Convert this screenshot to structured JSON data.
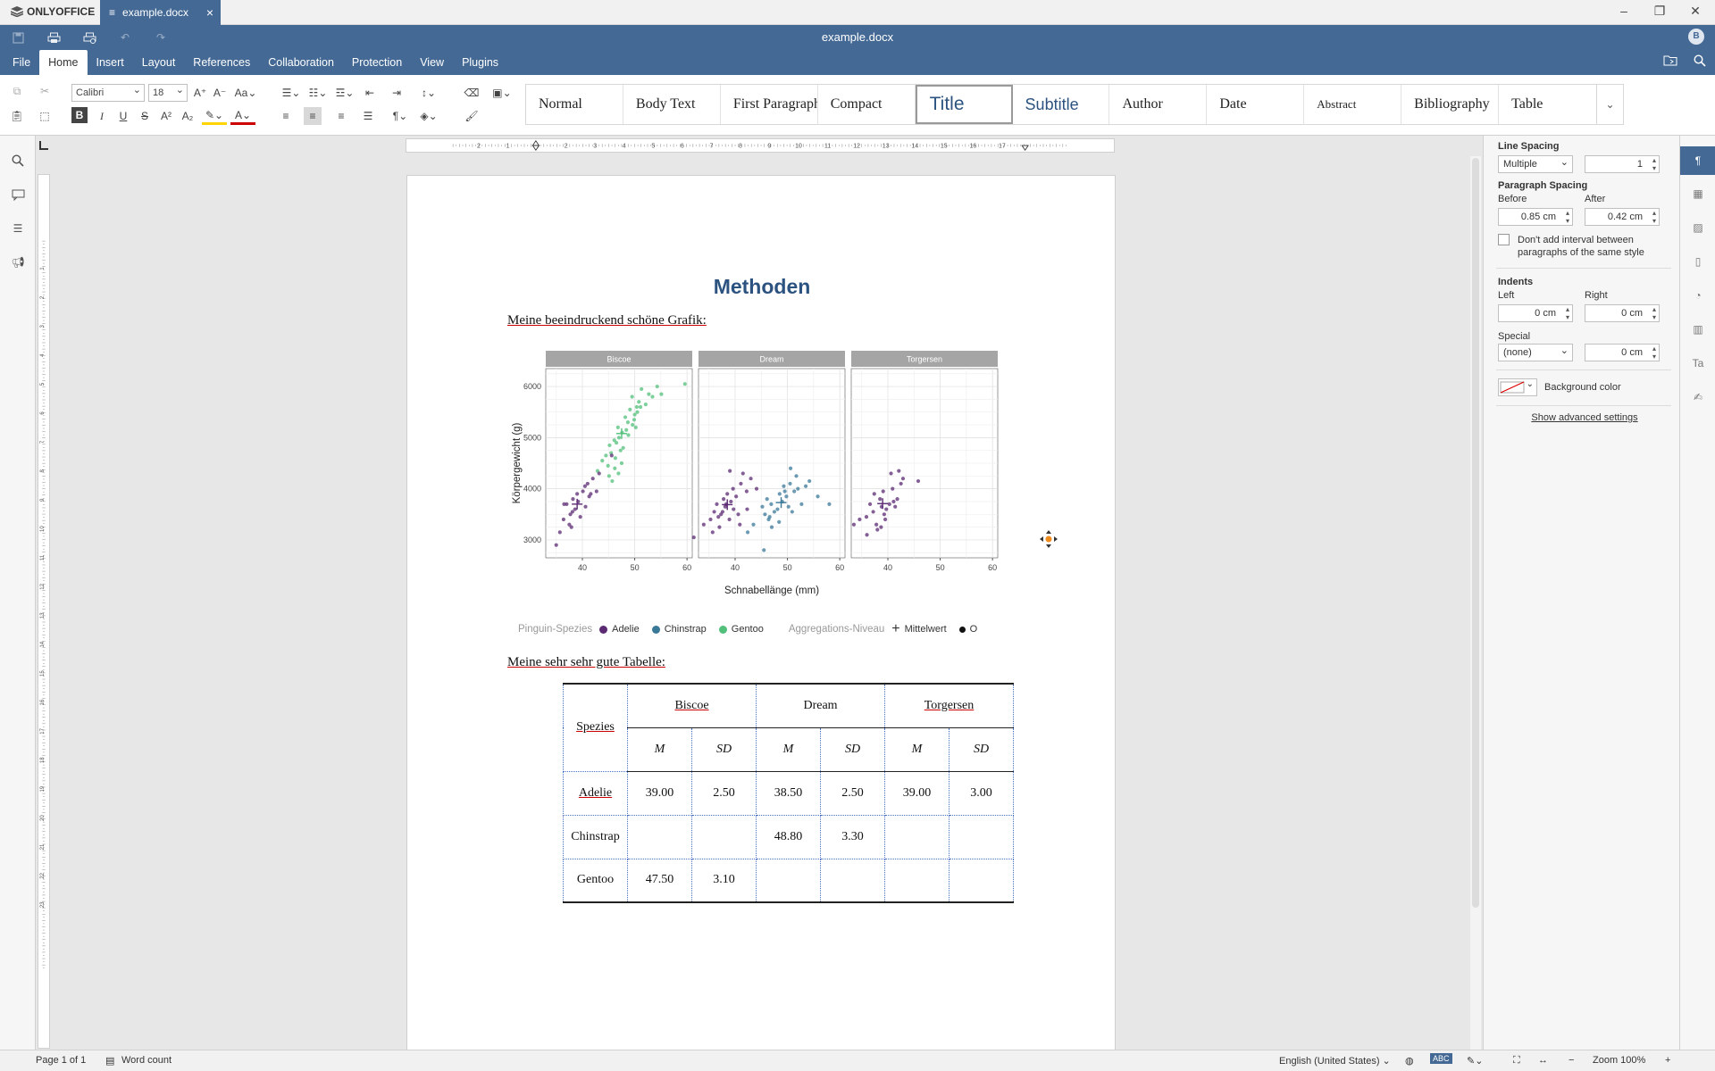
{
  "app": {
    "brand": "ONLYOFFICE",
    "tab_title": "example.docx",
    "doc_title": "example.docx",
    "user_initial": "B"
  },
  "menu": [
    "File",
    "Home",
    "Insert",
    "Layout",
    "References",
    "Collaboration",
    "Protection",
    "View",
    "Plugins"
  ],
  "toolbar": {
    "font_name": "Calibri",
    "font_size": "18",
    "change_case": "Aa",
    "styles": [
      "Normal",
      "Body Text",
      "First Paragraph",
      "Compact",
      "Title",
      "Subtitle",
      "Author",
      "Date",
      "Abstract",
      "Bibliography",
      "Table"
    ]
  },
  "document": {
    "heading": "Methoden",
    "chart_caption": "Meine beeindruckend schöne Grafik:",
    "table_caption": "Meine sehr sehr gute Tabelle:"
  },
  "chart_data": {
    "type": "scatter",
    "facets": [
      "Biscoe",
      "Dream",
      "Torgersen"
    ],
    "xlabel": "Schnabellänge (mm)",
    "ylabel": "Körpergewicht (g)",
    "x_ticks": [
      40,
      50,
      60
    ],
    "y_ticks": [
      3000,
      4000,
      5000,
      6000
    ],
    "xlim": [
      33,
      61
    ],
    "ylim": [
      2650,
      6350
    ],
    "legend": {
      "species_title": "Pinguin-Spezies",
      "species": [
        {
          "name": "Adelie",
          "color": "#5b2a73"
        },
        {
          "name": "Chinstrap",
          "color": "#3a7898"
        },
        {
          "name": "Gentoo",
          "color": "#52c07a"
        }
      ],
      "aggregation_title": "Aggregations-Niveau",
      "aggregation": [
        {
          "name": "Mittelwert",
          "symbol": "cross"
        },
        {
          "name": "O",
          "symbol": "dot"
        }
      ]
    },
    "series": [
      {
        "facet": "Biscoe",
        "species": "Gentoo",
        "x": [
          44.5,
          45.2,
          46.1,
          46.8,
          47.3,
          47.6,
          48.2,
          48.7,
          49.1,
          49.5,
          50.0,
          50.4,
          50.8,
          51.3,
          52.1,
          52.7,
          53.4,
          54.3,
          55.1,
          59.6,
          42.9,
          43.8,
          44.9,
          45.5,
          46.3,
          46.5,
          47.0,
          47.8,
          48.4,
          49.9,
          50.5,
          45.1,
          46.2,
          47.5,
          48.8,
          49.6,
          50.2,
          51.1,
          45.7,
          46.9
        ],
        "y": [
          4650,
          4850,
          4950,
          5200,
          4750,
          5100,
          5400,
          5300,
          5550,
          5800,
          5450,
          5600,
          5700,
          5950,
          5650,
          5850,
          5800,
          6000,
          5850,
          6050,
          4350,
          4550,
          4450,
          4700,
          4600,
          4900,
          5000,
          4800,
          5150,
          5350,
          5500,
          4250,
          4400,
          4500,
          5050,
          5250,
          5200,
          5600,
          4150,
          4300
        ]
      },
      {
        "facet": "Biscoe",
        "species": "Adelie",
        "x": [
          35.0,
          35.7,
          36.4,
          37.0,
          37.7,
          37.9,
          38.2,
          38.6,
          39.0,
          39.6,
          40.1,
          40.6,
          41.0,
          41.3,
          42.0,
          42.7,
          43.2,
          45.6,
          36.5,
          38.1,
          39.2,
          40.5,
          41.6,
          37.5
        ],
        "y": [
          2900,
          3150,
          3400,
          3700,
          3500,
          3250,
          3800,
          3600,
          3900,
          3450,
          3950,
          3650,
          4100,
          3850,
          4200,
          3950,
          4300,
          4650,
          3700,
          3550,
          3750,
          4050,
          3900,
          3300
        ]
      },
      {
        "facet": "Dream",
        "species": "Adelie",
        "x": [
          32.1,
          34.0,
          35.3,
          36.0,
          36.5,
          37.0,
          37.3,
          37.8,
          38.1,
          38.5,
          38.9,
          39.2,
          39.6,
          40.2,
          40.6,
          41.1,
          41.5,
          42.2,
          42.3,
          43.0,
          44.1,
          36.8,
          37.6,
          38.3,
          39.7,
          40.9,
          35.7,
          39.0
        ],
        "y": [
          3050,
          3300,
          3400,
          3550,
          3700,
          3250,
          3500,
          3800,
          3650,
          3900,
          3400,
          3750,
          4000,
          3850,
          3500,
          4100,
          4300,
          3950,
          3600,
          4200,
          4000,
          3450,
          3550,
          3700,
          3600,
          3300,
          3150,
          4350
        ]
      },
      {
        "facet": "Dream",
        "species": "Chinstrap",
        "x": [
          42.4,
          43.5,
          45.2,
          45.7,
          46.1,
          46.4,
          46.9,
          47.5,
          48.1,
          48.5,
          49.0,
          49.3,
          49.8,
          50.2,
          50.5,
          50.9,
          51.3,
          52.0,
          52.7,
          53.5,
          54.2,
          55.8,
          58.0,
          46.6,
          47.0,
          49.5,
          50.6,
          51.7,
          45.5,
          48.4
        ],
        "y": [
          3150,
          3300,
          3650,
          3500,
          3800,
          3400,
          3700,
          3550,
          3600,
          3900,
          3750,
          4050,
          3850,
          3650,
          4100,
          3550,
          3950,
          4000,
          3700,
          4050,
          4150,
          3850,
          3700,
          3450,
          3250,
          3950,
          4400,
          4250,
          2800,
          3350
        ]
      },
      {
        "facet": "Torgersen",
        "species": "Adelie",
        "x": [
          33.5,
          34.6,
          35.9,
          36.6,
          37.2,
          37.8,
          38.5,
          38.8,
          39.1,
          39.5,
          39.7,
          40.3,
          40.9,
          41.1,
          41.8,
          42.5,
          42.9,
          45.8,
          36.0,
          38.0,
          39.3,
          40.6,
          41.4,
          37.4,
          38.7,
          42.1
        ],
        "y": [
          3300,
          3400,
          3450,
          3700,
          3550,
          3300,
          3800,
          3650,
          3950,
          3400,
          3600,
          3700,
          4000,
          3750,
          3800,
          4100,
          4200,
          4150,
          3100,
          3200,
          3500,
          4300,
          3650,
          3900,
          3250,
          4350
        ]
      }
    ],
    "means": [
      {
        "facet": "Biscoe",
        "species": "Adelie",
        "x": 39.0,
        "y": 3700
      },
      {
        "facet": "Biscoe",
        "species": "Gentoo",
        "x": 47.5,
        "y": 5080
      },
      {
        "facet": "Dream",
        "species": "Adelie",
        "x": 38.5,
        "y": 3690
      },
      {
        "facet": "Dream",
        "species": "Chinstrap",
        "x": 48.8,
        "y": 3730
      },
      {
        "facet": "Torgersen",
        "species": "Adelie",
        "x": 39.0,
        "y": 3710
      }
    ]
  },
  "table": {
    "corner": "Spezies",
    "groups": [
      "Biscoe",
      "Dream",
      "Torgersen"
    ],
    "subheaders": [
      "M",
      "SD",
      "M",
      "SD",
      "M",
      "SD"
    ],
    "rows": [
      {
        "label": "Adelie",
        "cells": [
          "39.00",
          "2.50",
          "38.50",
          "2.50",
          "39.00",
          "3.00"
        ]
      },
      {
        "label": "Chinstrap",
        "cells": [
          "",
          "",
          "48.80",
          "3.30",
          "",
          ""
        ]
      },
      {
        "label": "Gentoo",
        "cells": [
          "47.50",
          "3.10",
          "",
          "",
          "",
          ""
        ]
      }
    ]
  },
  "ruler": {
    "h_ticks": [
      "2",
      "1",
      "1",
      "2",
      "3",
      "4",
      "5",
      "6",
      "7",
      "8",
      "9",
      "10",
      "11",
      "12",
      "13",
      "14",
      "15",
      "16",
      "17"
    ],
    "v_ticks": [
      "1",
      "2",
      "3",
      "4",
      "5",
      "6",
      "7",
      "8",
      "9",
      "10",
      "11",
      "12",
      "13",
      "14",
      "15",
      "16",
      "17",
      "18",
      "19",
      "20",
      "21",
      "22",
      "23"
    ]
  },
  "panel": {
    "line_spacing_label": "Line Spacing",
    "line_spacing_type": "Multiple",
    "line_spacing_value": "1",
    "paragraph_spacing_label": "Paragraph Spacing",
    "before_label": "Before",
    "before_value": "0.85 cm",
    "after_label": "After",
    "after_value": "0.42 cm",
    "dont_add_interval": "Don't add interval between paragraphs of the same style",
    "indents_label": "Indents",
    "left_label": "Left",
    "left_value": "0 cm",
    "right_label": "Right",
    "right_value": "0 cm",
    "special_label": "Special",
    "special_value": "(none)",
    "special_amount": "0 cm",
    "background_color_label": "Background color",
    "advanced_link": "Show advanced settings"
  },
  "status": {
    "page": "Page 1 of 1",
    "word_count": "Word count",
    "language": "English (United States)",
    "zoom": "Zoom 100%"
  }
}
